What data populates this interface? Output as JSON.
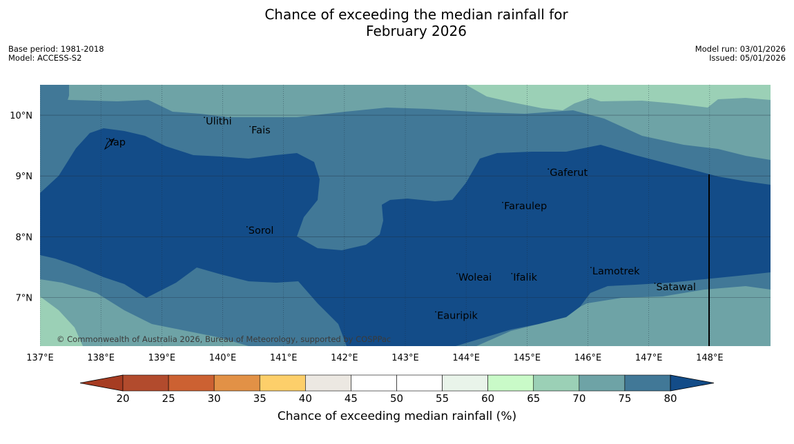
{
  "title": {
    "line1": "Chance of exceeding the median rainfall for",
    "line2": "February 2026"
  },
  "meta_left": {
    "base_period": "Base period: 1981-2018",
    "model": "Model: ACCESS-S2"
  },
  "meta_right": {
    "model_run": "Model run: 03/01/2026",
    "issued": "Issued: 05/01/2026"
  },
  "map": {
    "extent": {
      "lon_min": 137.0,
      "lon_max": 149.0,
      "lat_min": 6.2,
      "lat_max": 10.5
    },
    "lon_ticks": [
      137,
      138,
      139,
      140,
      141,
      142,
      143,
      144,
      145,
      146,
      147,
      148
    ],
    "lon_tick_labels": [
      "137°E",
      "138°E",
      "139°E",
      "140°E",
      "141°E",
      "142°E",
      "143°E",
      "144°E",
      "145°E",
      "146°E",
      "147°E",
      "148°E"
    ],
    "lat_ticks": [
      10,
      9,
      8,
      7
    ],
    "lat_tick_labels": [
      "10°N",
      "9°N",
      "8°N",
      "7°N"
    ],
    "places": [
      {
        "name": "Ulithi",
        "lon": 139.7,
        "lat": 9.85
      },
      {
        "name": "Fais",
        "lon": 140.45,
        "lat": 9.7
      },
      {
        "name": "Yap",
        "lon": 138.1,
        "lat": 9.5
      },
      {
        "name": "Gaferut",
        "lon": 145.35,
        "lat": 9.0
      },
      {
        "name": "Faraulep",
        "lon": 144.6,
        "lat": 8.45
      },
      {
        "name": "Sorol",
        "lon": 140.4,
        "lat": 8.05
      },
      {
        "name": "Lamotrek",
        "lon": 146.05,
        "lat": 7.38
      },
      {
        "name": "Woleai",
        "lon": 143.85,
        "lat": 7.28
      },
      {
        "name": "Ifalik",
        "lon": 144.75,
        "lat": 7.28
      },
      {
        "name": "Satawal",
        "lon": 147.1,
        "lat": 7.12
      },
      {
        "name": "Eauripik",
        "lon": 143.5,
        "lat": 6.65
      }
    ],
    "copyright": "© Commonwealth of Australia 2026, Bureau of Meteorology, supported by COSPPac",
    "colors": {
      "c70_75": "#9bd0b6",
      "c75_80": "#6ea3a6",
      "c80_85": "#417897",
      "c85_plus": "#134c88"
    }
  },
  "colorbar": {
    "ticks": [
      "20",
      "25",
      "30",
      "35",
      "40",
      "45",
      "50",
      "55",
      "60",
      "65",
      "70",
      "75",
      "80"
    ],
    "colors": [
      "#a63c22",
      "#b24b2d",
      "#cc6132",
      "#e29146",
      "#fdcf6a",
      "#ece8e2",
      "#ffffff",
      "#ffffff",
      "#e9f4ea",
      "#c9fac8",
      "#9bd0b6",
      "#6ea3a6",
      "#417897",
      "#134c88"
    ],
    "label": "Chance of exceeding median rainfall (%)"
  }
}
